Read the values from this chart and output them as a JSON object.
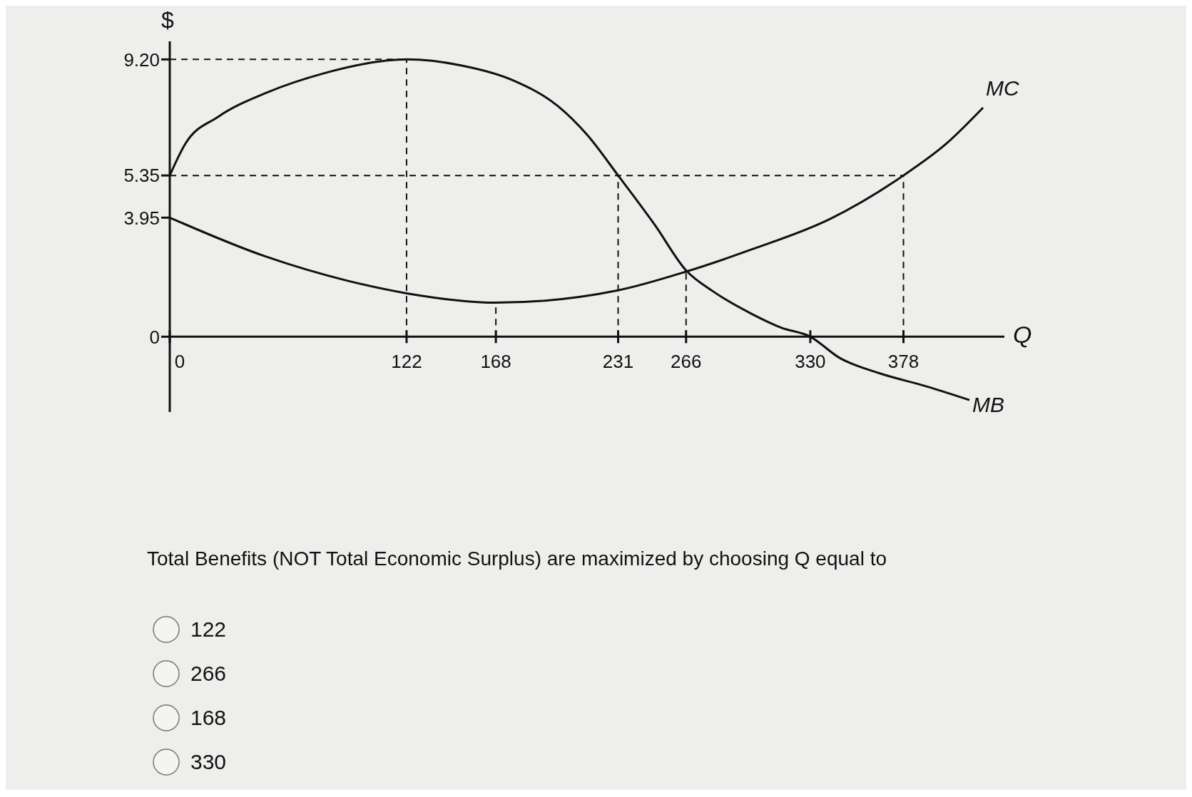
{
  "chart_data": {
    "type": "line",
    "xlabel": "Q",
    "ylabel": "$",
    "xlim": [
      0,
      430
    ],
    "ylim": [
      -2.5,
      9.8
    ],
    "xticks": [
      0,
      122,
      168,
      231,
      266,
      330,
      378
    ],
    "yticks": [
      0,
      {
        "value": 3.95,
        "label": "3.95"
      },
      {
        "value": 5.35,
        "label": "5.35"
      },
      {
        "value": 9.2,
        "label": "9.20"
      }
    ],
    "series": [
      {
        "name": "MB",
        "color": "#111111",
        "x": [
          0,
          8,
          25,
          50,
          80,
          100,
          122,
          150,
          177,
          200,
          215,
          231,
          250,
          266,
          280,
          300,
          315,
          330,
          345,
          365,
          390,
          412
        ],
        "values": [
          5.35,
          6.4,
          7.3,
          8.1,
          8.75,
          9.05,
          9.2,
          9.0,
          8.5,
          7.65,
          6.7,
          5.35,
          3.7,
          2.2,
          1.5,
          0.75,
          0.3,
          0,
          -0.7,
          -1.2,
          -1.65,
          -2.1
        ]
      },
      {
        "name": "MC",
        "color": "#111111",
        "x": [
          0,
          49,
          92,
          122,
          168,
          231,
          266,
          300,
          340,
          378,
          400,
          419
        ],
        "values": [
          3.95,
          2.67,
          1.85,
          1.44,
          1.13,
          1.54,
          2.16,
          2.9,
          3.9,
          5.35,
          6.4,
          7.6
        ]
      }
    ],
    "ref_lines": [
      {
        "axis": "y",
        "value": 9.2
      },
      {
        "axis": "y",
        "value": 5.35
      },
      {
        "axis": "x",
        "value": 122
      },
      {
        "axis": "x",
        "value": 168
      },
      {
        "axis": "x",
        "value": 231
      },
      {
        "axis": "x",
        "value": 266
      },
      {
        "axis": "x",
        "value": 378
      }
    ],
    "line_style": "solid",
    "marker": "none",
    "annotations": [
      "Total Benefits (NOT Total Economic Surplus) are maximized by choosing Q equal to",
      "122",
      "266",
      "168",
      "330"
    ]
  }
}
